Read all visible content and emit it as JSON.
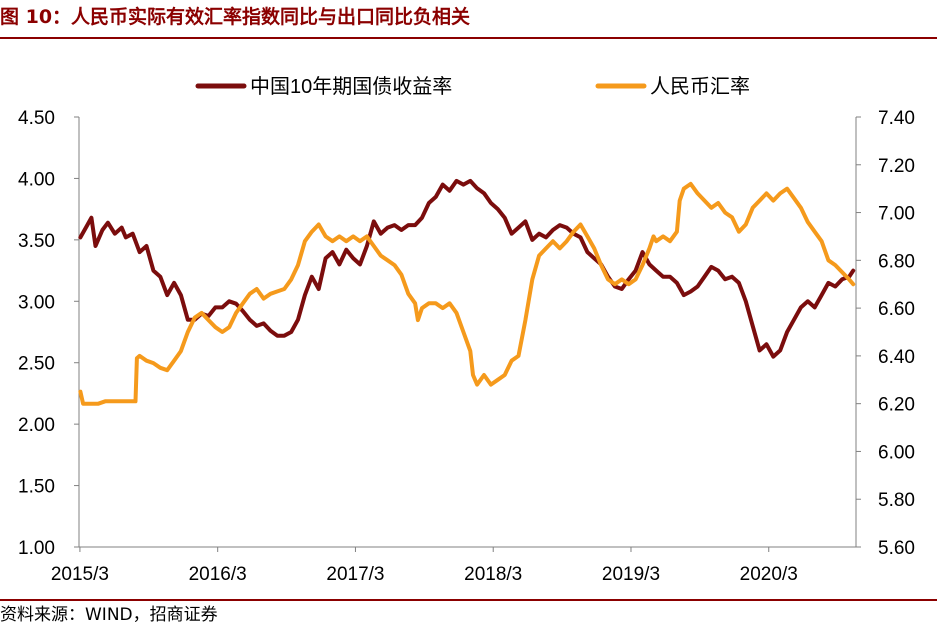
{
  "title": "图 10：人民币实际有效汇率指数同比与出口同比负相关",
  "source": "资料来源：WIND，招商证券",
  "colors": {
    "bond": "#7B0D0D",
    "fx": "#F59A1C",
    "brand": "#8B0000",
    "axis": "#808080"
  },
  "chart_data": {
    "type": "line",
    "legend_position": "top",
    "grid": false,
    "x_ticks": [
      "2015/3",
      "2016/3",
      "2017/3",
      "2018/3",
      "2019/3",
      "2020/3"
    ],
    "x_range": [
      2015.16,
      2020.8
    ],
    "y_left": {
      "range": [
        1.0,
        4.5
      ],
      "ticks": [
        "1.00",
        "1.50",
        "2.00",
        "2.50",
        "3.00",
        "3.50",
        "4.00",
        "4.50"
      ]
    },
    "y_right": {
      "range": [
        5.6,
        7.4
      ],
      "ticks": [
        "5.60",
        "5.80",
        "6.00",
        "6.20",
        "6.40",
        "6.60",
        "6.80",
        "7.00",
        "7.20",
        "7.40"
      ]
    },
    "series": [
      {
        "name": "中国10年期国债收益率",
        "axis": "left",
        "points": [
          [
            2015.17,
            3.52
          ],
          [
            2015.22,
            3.62
          ],
          [
            2015.25,
            3.68
          ],
          [
            2015.28,
            3.45
          ],
          [
            2015.33,
            3.58
          ],
          [
            2015.37,
            3.64
          ],
          [
            2015.42,
            3.55
          ],
          [
            2015.47,
            3.6
          ],
          [
            2015.5,
            3.52
          ],
          [
            2015.55,
            3.55
          ],
          [
            2015.6,
            3.4
          ],
          [
            2015.65,
            3.45
          ],
          [
            2015.7,
            3.25
          ],
          [
            2015.75,
            3.2
          ],
          [
            2015.8,
            3.05
          ],
          [
            2015.85,
            3.15
          ],
          [
            2015.9,
            3.05
          ],
          [
            2015.95,
            2.85
          ],
          [
            2016.0,
            2.85
          ],
          [
            2016.05,
            2.9
          ],
          [
            2016.1,
            2.88
          ],
          [
            2016.15,
            2.95
          ],
          [
            2016.2,
            2.95
          ],
          [
            2016.25,
            3.0
          ],
          [
            2016.3,
            2.98
          ],
          [
            2016.35,
            2.92
          ],
          [
            2016.4,
            2.85
          ],
          [
            2016.45,
            2.8
          ],
          [
            2016.5,
            2.82
          ],
          [
            2016.55,
            2.76
          ],
          [
            2016.6,
            2.72
          ],
          [
            2016.65,
            2.72
          ],
          [
            2016.7,
            2.75
          ],
          [
            2016.75,
            2.85
          ],
          [
            2016.8,
            3.05
          ],
          [
            2016.85,
            3.2
          ],
          [
            2016.9,
            3.1
          ],
          [
            2016.95,
            3.35
          ],
          [
            2017.0,
            3.4
          ],
          [
            2017.05,
            3.3
          ],
          [
            2017.1,
            3.42
          ],
          [
            2017.15,
            3.35
          ],
          [
            2017.2,
            3.3
          ],
          [
            2017.25,
            3.45
          ],
          [
            2017.3,
            3.65
          ],
          [
            2017.35,
            3.55
          ],
          [
            2017.4,
            3.6
          ],
          [
            2017.45,
            3.62
          ],
          [
            2017.5,
            3.58
          ],
          [
            2017.55,
            3.62
          ],
          [
            2017.6,
            3.62
          ],
          [
            2017.65,
            3.68
          ],
          [
            2017.7,
            3.8
          ],
          [
            2017.75,
            3.85
          ],
          [
            2017.8,
            3.95
          ],
          [
            2017.85,
            3.9
          ],
          [
            2017.9,
            3.98
          ],
          [
            2017.95,
            3.95
          ],
          [
            2018.0,
            3.98
          ],
          [
            2018.05,
            3.92
          ],
          [
            2018.1,
            3.88
          ],
          [
            2018.15,
            3.8
          ],
          [
            2018.2,
            3.75
          ],
          [
            2018.25,
            3.68
          ],
          [
            2018.3,
            3.55
          ],
          [
            2018.35,
            3.6
          ],
          [
            2018.4,
            3.65
          ],
          [
            2018.45,
            3.5
          ],
          [
            2018.5,
            3.55
          ],
          [
            2018.55,
            3.52
          ],
          [
            2018.6,
            3.58
          ],
          [
            2018.65,
            3.62
          ],
          [
            2018.7,
            3.6
          ],
          [
            2018.75,
            3.55
          ],
          [
            2018.8,
            3.52
          ],
          [
            2018.85,
            3.4
          ],
          [
            2018.9,
            3.35
          ],
          [
            2018.95,
            3.3
          ],
          [
            2019.0,
            3.2
          ],
          [
            2019.05,
            3.12
          ],
          [
            2019.1,
            3.1
          ],
          [
            2019.15,
            3.18
          ],
          [
            2019.2,
            3.25
          ],
          [
            2019.25,
            3.4
          ],
          [
            2019.3,
            3.3
          ],
          [
            2019.35,
            3.25
          ],
          [
            2019.4,
            3.2
          ],
          [
            2019.45,
            3.2
          ],
          [
            2019.5,
            3.15
          ],
          [
            2019.55,
            3.05
          ],
          [
            2019.6,
            3.08
          ],
          [
            2019.65,
            3.12
          ],
          [
            2019.7,
            3.2
          ],
          [
            2019.75,
            3.28
          ],
          [
            2019.8,
            3.25
          ],
          [
            2019.85,
            3.18
          ],
          [
            2019.9,
            3.2
          ],
          [
            2019.95,
            3.15
          ],
          [
            2020.0,
            3.0
          ],
          [
            2020.05,
            2.8
          ],
          [
            2020.1,
            2.6
          ],
          [
            2020.15,
            2.65
          ],
          [
            2020.2,
            2.55
          ],
          [
            2020.25,
            2.6
          ],
          [
            2020.3,
            2.75
          ],
          [
            2020.35,
            2.85
          ],
          [
            2020.4,
            2.95
          ],
          [
            2020.45,
            3.0
          ],
          [
            2020.5,
            2.95
          ],
          [
            2020.55,
            3.05
          ],
          [
            2020.6,
            3.15
          ],
          [
            2020.65,
            3.12
          ],
          [
            2020.7,
            3.18
          ],
          [
            2020.75,
            3.2
          ],
          [
            2020.78,
            3.25
          ]
        ]
      },
      {
        "name": "人民币汇率",
        "axis": "right",
        "points": [
          [
            2015.17,
            6.25
          ],
          [
            2015.19,
            6.2
          ],
          [
            2015.25,
            6.2
          ],
          [
            2015.3,
            6.2
          ],
          [
            2015.35,
            6.21
          ],
          [
            2015.4,
            6.21
          ],
          [
            2015.45,
            6.21
          ],
          [
            2015.5,
            6.21
          ],
          [
            2015.55,
            6.21
          ],
          [
            2015.57,
            6.21
          ],
          [
            2015.58,
            6.39
          ],
          [
            2015.6,
            6.4
          ],
          [
            2015.65,
            6.38
          ],
          [
            2015.7,
            6.37
          ],
          [
            2015.75,
            6.35
          ],
          [
            2015.8,
            6.34
          ],
          [
            2015.85,
            6.38
          ],
          [
            2015.9,
            6.42
          ],
          [
            2015.95,
            6.5
          ],
          [
            2016.0,
            6.56
          ],
          [
            2016.05,
            6.58
          ],
          [
            2016.1,
            6.55
          ],
          [
            2016.15,
            6.52
          ],
          [
            2016.2,
            6.5
          ],
          [
            2016.25,
            6.52
          ],
          [
            2016.3,
            6.58
          ],
          [
            2016.35,
            6.62
          ],
          [
            2016.4,
            6.66
          ],
          [
            2016.45,
            6.68
          ],
          [
            2016.5,
            6.64
          ],
          [
            2016.55,
            6.66
          ],
          [
            2016.6,
            6.67
          ],
          [
            2016.65,
            6.68
          ],
          [
            2016.7,
            6.72
          ],
          [
            2016.75,
            6.78
          ],
          [
            2016.8,
            6.88
          ],
          [
            2016.85,
            6.92
          ],
          [
            2016.9,
            6.95
          ],
          [
            2016.95,
            6.9
          ],
          [
            2017.0,
            6.88
          ],
          [
            2017.05,
            6.9
          ],
          [
            2017.1,
            6.88
          ],
          [
            2017.15,
            6.9
          ],
          [
            2017.2,
            6.88
          ],
          [
            2017.25,
            6.9
          ],
          [
            2017.3,
            6.86
          ],
          [
            2017.35,
            6.82
          ],
          [
            2017.4,
            6.8
          ],
          [
            2017.45,
            6.78
          ],
          [
            2017.5,
            6.74
          ],
          [
            2017.55,
            6.66
          ],
          [
            2017.6,
            6.62
          ],
          [
            2017.62,
            6.55
          ],
          [
            2017.65,
            6.6
          ],
          [
            2017.7,
            6.62
          ],
          [
            2017.75,
            6.62
          ],
          [
            2017.8,
            6.6
          ],
          [
            2017.85,
            6.62
          ],
          [
            2017.9,
            6.58
          ],
          [
            2017.95,
            6.5
          ],
          [
            2018.0,
            6.42
          ],
          [
            2018.02,
            6.32
          ],
          [
            2018.05,
            6.28
          ],
          [
            2018.1,
            6.32
          ],
          [
            2018.15,
            6.28
          ],
          [
            2018.2,
            6.3
          ],
          [
            2018.25,
            6.32
          ],
          [
            2018.3,
            6.38
          ],
          [
            2018.35,
            6.4
          ],
          [
            2018.4,
            6.55
          ],
          [
            2018.45,
            6.72
          ],
          [
            2018.5,
            6.82
          ],
          [
            2018.55,
            6.85
          ],
          [
            2018.6,
            6.88
          ],
          [
            2018.65,
            6.85
          ],
          [
            2018.7,
            6.88
          ],
          [
            2018.75,
            6.92
          ],
          [
            2018.8,
            6.95
          ],
          [
            2018.85,
            6.9
          ],
          [
            2018.9,
            6.85
          ],
          [
            2018.95,
            6.78
          ],
          [
            2019.0,
            6.72
          ],
          [
            2019.05,
            6.7
          ],
          [
            2019.1,
            6.72
          ],
          [
            2019.15,
            6.7
          ],
          [
            2019.2,
            6.72
          ],
          [
            2019.25,
            6.78
          ],
          [
            2019.3,
            6.85
          ],
          [
            2019.33,
            6.9
          ],
          [
            2019.35,
            6.88
          ],
          [
            2019.4,
            6.9
          ],
          [
            2019.45,
            6.88
          ],
          [
            2019.5,
            6.92
          ],
          [
            2019.52,
            7.05
          ],
          [
            2019.55,
            7.1
          ],
          [
            2019.6,
            7.12
          ],
          [
            2019.65,
            7.08
          ],
          [
            2019.7,
            7.05
          ],
          [
            2019.75,
            7.02
          ],
          [
            2019.8,
            7.04
          ],
          [
            2019.85,
            7.0
          ],
          [
            2019.9,
            6.98
          ],
          [
            2019.95,
            6.92
          ],
          [
            2020.0,
            6.95
          ],
          [
            2020.05,
            7.02
          ],
          [
            2020.1,
            7.05
          ],
          [
            2020.15,
            7.08
          ],
          [
            2020.2,
            7.05
          ],
          [
            2020.25,
            7.08
          ],
          [
            2020.3,
            7.1
          ],
          [
            2020.35,
            7.06
          ],
          [
            2020.4,
            7.02
          ],
          [
            2020.45,
            6.96
          ],
          [
            2020.5,
            6.92
          ],
          [
            2020.55,
            6.88
          ],
          [
            2020.6,
            6.8
          ],
          [
            2020.65,
            6.78
          ],
          [
            2020.7,
            6.75
          ],
          [
            2020.75,
            6.72
          ],
          [
            2020.78,
            6.7
          ]
        ]
      }
    ]
  }
}
